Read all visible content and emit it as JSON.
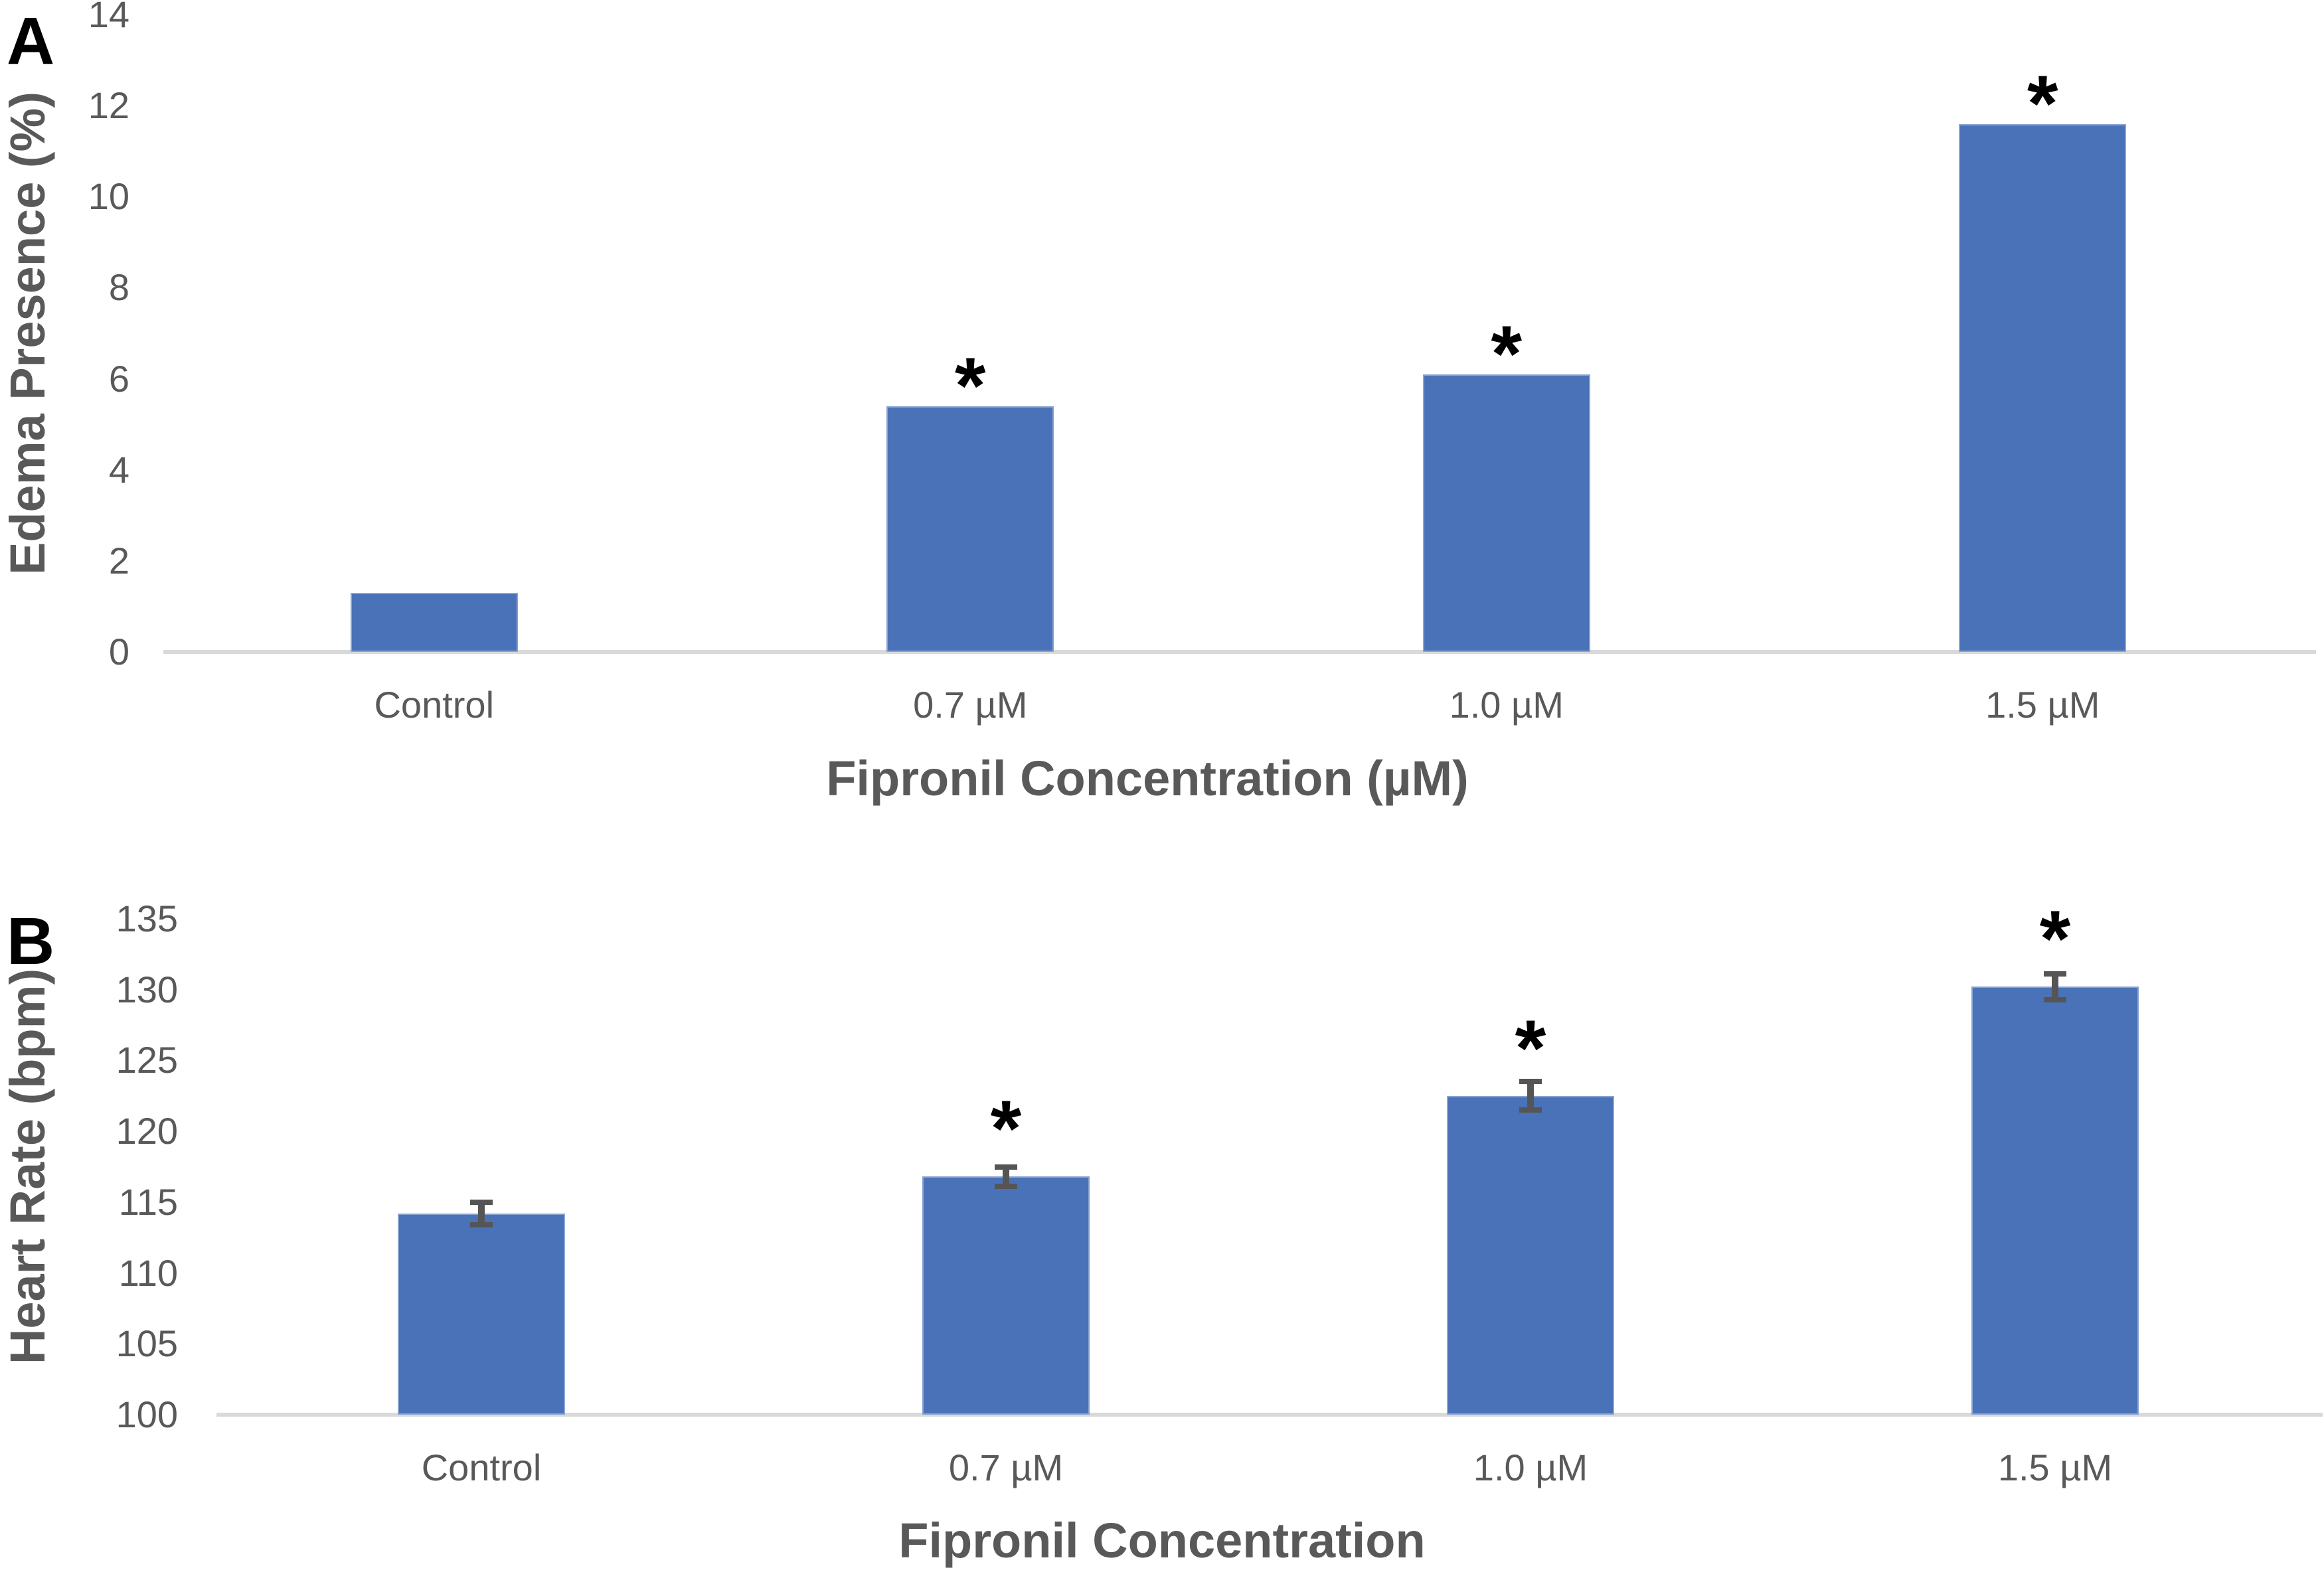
{
  "figure": {
    "background": "#ffffff",
    "description": "Two-panel bar chart of fipronil exposure effects"
  },
  "colors": {
    "bar": "#4a72b8",
    "axis_line": "#d9d9d9",
    "text": "#595959",
    "error_bar": "#555555",
    "significance": "#000000"
  },
  "significance_symbol": "*",
  "chart_data": [
    {
      "panel_label": "A",
      "type": "bar",
      "title": "",
      "ylabel": "Edema Presence (%)",
      "xlabel": "Fipronil Concentration (µM)",
      "categories": [
        "Control",
        "0.7 µM",
        "1.0 µM",
        "1.5 µM"
      ],
      "values": [
        1.3,
        5.4,
        6.1,
        11.6
      ],
      "errors": null,
      "significant": [
        false,
        true,
        true,
        true
      ],
      "ylim": [
        0,
        14
      ],
      "yticks": [
        0,
        2,
        4,
        6,
        8,
        10,
        12,
        14
      ],
      "grid": false,
      "legend": null
    },
    {
      "panel_label": "B",
      "type": "bar",
      "title": "",
      "ylabel": "Heart Rate (bpm)",
      "xlabel": "Fipronil Concentration",
      "categories": [
        "Control",
        "0.7 µM",
        "1.0 µM",
        "1.5 µM"
      ],
      "values": [
        114.2,
        116.8,
        122.5,
        130.2
      ],
      "errors": [
        0.8,
        0.7,
        1.0,
        0.9
      ],
      "significant": [
        false,
        true,
        true,
        true
      ],
      "ylim": [
        100,
        135
      ],
      "yticks": [
        100,
        105,
        110,
        115,
        120,
        125,
        130,
        135
      ],
      "grid": false,
      "legend": null
    }
  ]
}
